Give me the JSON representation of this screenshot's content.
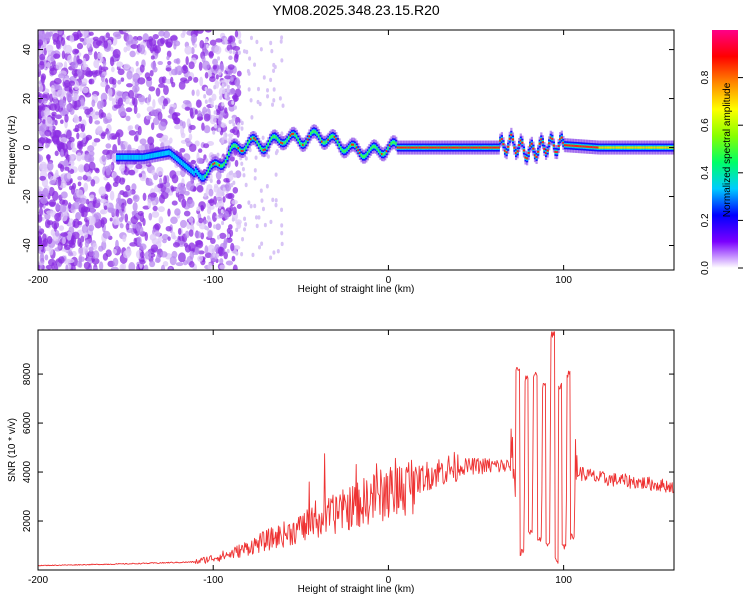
{
  "title": "YM08.2025.348.23.15.R20",
  "chart_data": [
    {
      "type": "heatmap",
      "title": "YM08.2025.348.23.15.R20",
      "xlabel": "Height of straight line (km)",
      "ylabel": "Frequency (Hz)",
      "xlim": [
        -200,
        163
      ],
      "ylim": [
        -50,
        48
      ],
      "xticks": [
        -200,
        -100,
        0,
        100
      ],
      "yticks": [
        -40,
        -20,
        0,
        20,
        40
      ],
      "colorbar": {
        "label": "Normalized spectral amplitude",
        "range": [
          0,
          1
        ],
        "ticks": [
          0.0,
          0.2,
          0.4,
          0.6,
          0.8
        ],
        "colors": [
          "#ffffff",
          "#7a00ff",
          "#0000ff",
          "#00ccff",
          "#00ff66",
          "#88ff00",
          "#ffff00",
          "#ff8800",
          "#ff0000",
          "#ff0088"
        ]
      },
      "ridge": {
        "x": [
          -155,
          -140,
          -125,
          -110,
          -100,
          -90,
          -80,
          -70,
          -60,
          -50,
          -40,
          -30,
          -20,
          -10,
          0,
          20,
          40,
          60,
          63,
          70,
          80,
          90,
          100,
          120,
          140,
          163
        ],
        "freq": [
          -4,
          -4,
          -2,
          -11,
          -9,
          -2,
          2,
          1,
          4,
          3,
          5,
          2,
          -1,
          -2,
          0,
          0,
          0,
          0,
          0,
          2,
          -2,
          1,
          1,
          0,
          0,
          0
        ]
      }
    },
    {
      "type": "line",
      "xlabel": "Height of straight line (km)",
      "ylabel": "SNR (10 * v/v)",
      "xlim": [
        -200,
        163
      ],
      "ylim": [
        0,
        9800
      ],
      "xticks": [
        -200,
        -100,
        0,
        100
      ],
      "yticks": [
        2000,
        4000,
        6000,
        8000
      ],
      "color": "#ee3333",
      "trend": {
        "x": [
          -200,
          -150,
          -110,
          -90,
          -70,
          -50,
          -30,
          -10,
          10,
          20,
          30,
          40,
          50,
          60,
          70,
          75,
          105,
          110,
          120,
          140,
          163
        ],
        "y": [
          180,
          250,
          330,
          650,
          1200,
          1700,
          2300,
          2900,
          3400,
          3800,
          4050,
          4200,
          4250,
          4250,
          4250,
          4300,
          4100,
          3950,
          3750,
          3600,
          3400
        ]
      },
      "spikes": [
        {
          "x": 74,
          "y": 8200
        },
        {
          "x": 76,
          "y": 700
        },
        {
          "x": 79,
          "y": 7800
        },
        {
          "x": 81,
          "y": 1500
        },
        {
          "x": 84,
          "y": 8000
        },
        {
          "x": 86,
          "y": 1300
        },
        {
          "x": 89,
          "y": 7500
        },
        {
          "x": 91,
          "y": 1100
        },
        {
          "x": 94,
          "y": 9600
        },
        {
          "x": 96,
          "y": 400
        },
        {
          "x": 98,
          "y": 7500
        },
        {
          "x": 100,
          "y": 1000
        },
        {
          "x": 103,
          "y": 8000
        },
        {
          "x": 105,
          "y": 1400
        }
      ]
    }
  ]
}
